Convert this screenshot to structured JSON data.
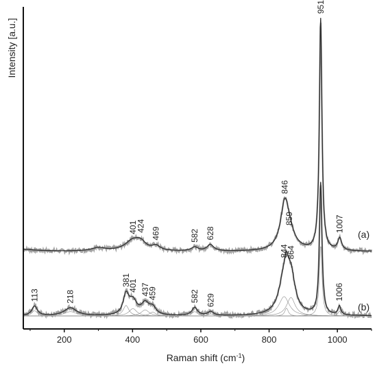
{
  "chart_data": {
    "type": "line",
    "xlabel": "Raman shift (cm",
    "xlabel_sup": "-1",
    "xlabel_end": ")",
    "ylabel": "Intensity [a.u.]",
    "xlim": [
      80,
      1100
    ],
    "ylim": [
      0,
      1
    ],
    "xticks": [
      200,
      400,
      600,
      800,
      1000
    ],
    "grid": false,
    "legend": "none",
    "colors": {
      "raw": "#a0a0a0",
      "fit": "#2f2f2f",
      "component": "#8a8a8a",
      "axis": "#111111"
    },
    "series": [
      {
        "name": "(a)",
        "baseline": 0.24,
        "noise": 0.006,
        "bumps": [
          {
            "x": 60,
            "h": 0.008,
            "w": 60
          },
          {
            "x": 300,
            "h": 0.01,
            "w": 25
          },
          {
            "x": 401,
            "h": 0.032,
            "w": 28
          },
          {
            "x": 424,
            "h": 0.02,
            "w": 18
          },
          {
            "x": 469,
            "h": 0.014,
            "w": 14
          },
          {
            "x": 582,
            "h": 0.012,
            "w": 12
          },
          {
            "x": 628,
            "h": 0.02,
            "w": 12
          },
          {
            "x": 846,
            "h": 0.135,
            "w": 15
          },
          {
            "x": 859,
            "h": 0.04,
            "w": 22
          },
          {
            "x": 951,
            "h": 0.72,
            "w": 4.5
          },
          {
            "x": 1007,
            "h": 0.038,
            "w": 7
          }
        ],
        "peak_labels": [
          {
            "x": 401,
            "text": "401"
          },
          {
            "x": 424,
            "text": "424"
          },
          {
            "x": 469,
            "text": "469"
          },
          {
            "x": 582,
            "text": "582"
          },
          {
            "x": 628,
            "text": "628"
          },
          {
            "x": 846,
            "text": "846"
          },
          {
            "x": 859,
            "text": "859"
          },
          {
            "x": 951,
            "text": "951"
          },
          {
            "x": 1007,
            "text": "1007"
          }
        ],
        "label_text": "(a)"
      },
      {
        "name": "(b)",
        "baseline": 0.04,
        "noise": 0.007,
        "bumps": [
          {
            "x": 113,
            "h": 0.03,
            "w": 10
          },
          {
            "x": 218,
            "h": 0.025,
            "w": 22
          },
          {
            "x": 381,
            "h": 0.06,
            "w": 10
          },
          {
            "x": 401,
            "h": 0.042,
            "w": 14
          },
          {
            "x": 437,
            "h": 0.035,
            "w": 14
          },
          {
            "x": 459,
            "h": 0.022,
            "w": 12
          },
          {
            "x": 582,
            "h": 0.025,
            "w": 10
          },
          {
            "x": 629,
            "h": 0.012,
            "w": 10
          },
          {
            "x": 844,
            "h": 0.11,
            "w": 18
          },
          {
            "x": 864,
            "h": 0.105,
            "w": 15
          },
          {
            "x": 851,
            "h": 0.045,
            "w": 6
          },
          {
            "x": 951,
            "h": 0.41,
            "w": 4.5
          },
          {
            "x": 1006,
            "h": 0.028,
            "w": 5
          }
        ],
        "peak_labels": [
          {
            "x": 113,
            "text": "113"
          },
          {
            "x": 218,
            "text": "218"
          },
          {
            "x": 381,
            "text": "381"
          },
          {
            "x": 401,
            "text": "401"
          },
          {
            "x": 437,
            "text": "437"
          },
          {
            "x": 459,
            "text": "459"
          },
          {
            "x": 582,
            "text": "582"
          },
          {
            "x": 629,
            "text": "629"
          },
          {
            "x": 844,
            "text": "844"
          },
          {
            "x": 864,
            "text": "864"
          },
          {
            "x": 1006,
            "text": "1006"
          }
        ],
        "label_text": "(b)"
      }
    ]
  }
}
